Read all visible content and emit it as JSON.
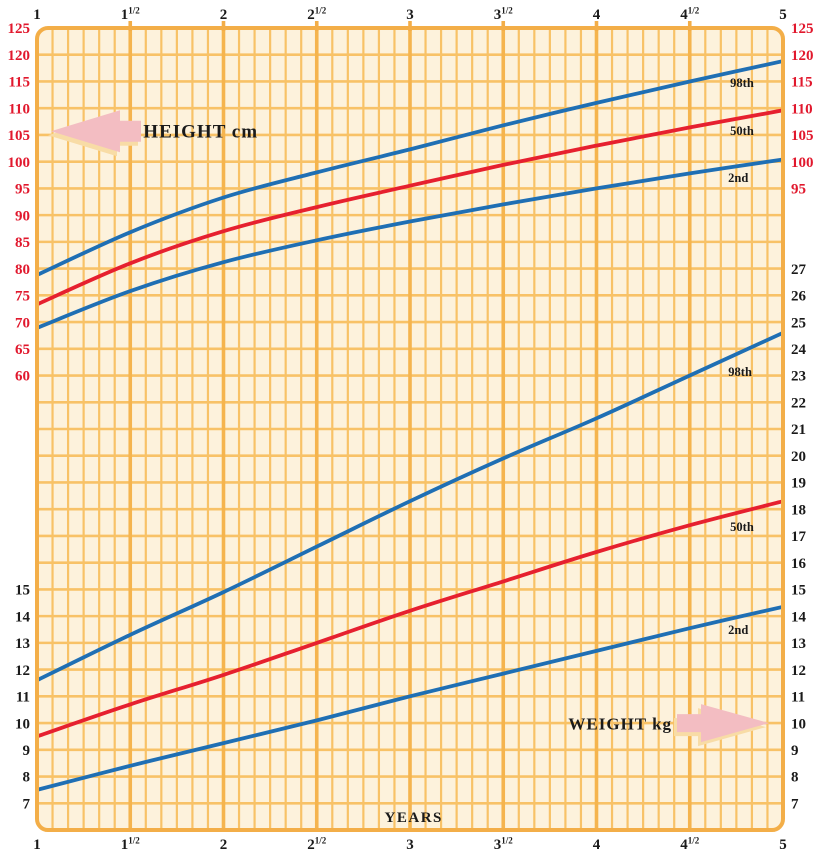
{
  "colors": {
    "page_bg": "#ffffff",
    "plot_bg": "#fdf2dc",
    "grid_minor": "#f8c267",
    "grid_major": "#f5b44e",
    "border": "#f3ae48",
    "curve_blue": "#1f6fb4",
    "curve_red": "#e6202f",
    "height_label_red": "#e1182d",
    "text_black": "#1a1a1a",
    "arrow_pink": "#f3bdc2",
    "arrow_shadow": "#f8dca6"
  },
  "chart_data": {
    "type": "line",
    "x_axis": {
      "label": "YEARS",
      "label_age_position": 3.02,
      "min": 1,
      "max": 5,
      "tick_labels": [
        {
          "t": "1"
        },
        {
          "t": "1",
          "sup": "1/2"
        },
        {
          "t": "2"
        },
        {
          "t": "2",
          "sup": "1/2"
        },
        {
          "t": "3"
        },
        {
          "t": "3",
          "sup": "1/2"
        },
        {
          "t": "4"
        },
        {
          "t": "4",
          "sup": "1/2"
        },
        {
          "t": "5"
        }
      ],
      "shown_top": true,
      "shown_bottom": true,
      "minor_divisions_per_half_year": 6
    },
    "height_axis": {
      "title": "HEIGHT cm",
      "unit": "cm",
      "min": 60,
      "max": 125,
      "step": 5,
      "left_tick_labels": [
        125,
        120,
        115,
        110,
        105,
        100,
        95,
        90,
        85,
        80,
        75,
        70,
        65,
        60
      ],
      "right_tick_labels": [
        125,
        120,
        115,
        110,
        105,
        100,
        95
      ]
    },
    "weight_axis": {
      "title": "WEIGHT kg",
      "unit": "kg",
      "min": 7,
      "max": 27,
      "step": 1,
      "left_tick_labels": [
        15,
        14,
        13,
        12,
        11,
        10,
        9,
        8,
        7
      ],
      "right_tick_labels": [
        27,
        26,
        25,
        24,
        23,
        22,
        21,
        20,
        19,
        18,
        17,
        16,
        15,
        14,
        13,
        12,
        11,
        10,
        9,
        8,
        7
      ]
    },
    "ages": [
      1,
      1.5,
      2,
      2.5,
      3,
      3.5,
      4,
      4.5,
      5
    ],
    "series": [
      {
        "id": "height-98th",
        "group": "height",
        "name": "98th",
        "color_key": "curve_blue",
        "values": [
          78.8,
          86.8,
          93.3,
          98.0,
          102.3,
          106.8,
          111.0,
          115.0,
          118.8
        ],
        "label": {
          "text": "98th",
          "age": 4.78,
          "value": 114.8
        }
      },
      {
        "id": "height-50th",
        "group": "height",
        "name": "50th",
        "color_key": "curve_red",
        "values": [
          73.3,
          81.0,
          87.0,
          91.5,
          95.5,
          99.4,
          103.0,
          106.4,
          109.6
        ],
        "label": {
          "text": "50th",
          "age": 4.78,
          "value": 105.8
        }
      },
      {
        "id": "height-2nd",
        "group": "height",
        "name": "2nd",
        "color_key": "curve_blue",
        "values": [
          68.9,
          75.8,
          81.2,
          85.3,
          88.8,
          92.0,
          95.0,
          97.8,
          100.4
        ],
        "label": {
          "text": "2nd",
          "age": 4.76,
          "value": 97.0
        }
      },
      {
        "id": "weight-98th",
        "group": "weight",
        "name": "98th",
        "color_key": "curve_blue",
        "values": [
          11.6,
          13.3,
          14.9,
          16.6,
          18.3,
          19.9,
          21.4,
          23.0,
          24.6
        ],
        "label": {
          "text": "98th",
          "age": 4.77,
          "value": 23.15
        }
      },
      {
        "id": "weight-50th",
        "group": "weight",
        "name": "50th",
        "color_key": "curve_red",
        "values": [
          9.5,
          10.7,
          11.8,
          13.0,
          14.2,
          15.3,
          16.4,
          17.4,
          18.3
        ],
        "label": {
          "text": "50th",
          "age": 4.78,
          "value": 17.35
        }
      },
      {
        "id": "weight-2nd",
        "group": "weight",
        "name": "2nd",
        "color_key": "curve_blue",
        "values": [
          7.5,
          8.4,
          9.25,
          10.1,
          11.0,
          11.85,
          12.7,
          13.55,
          14.35
        ],
        "label": {
          "text": "2nd",
          "age": 4.76,
          "value": 13.5
        }
      }
    ],
    "annotations": [
      {
        "id": "height-arrow",
        "text": "HEIGHT cm",
        "direction": "left",
        "axis": "height",
        "points_at_value": 105.7,
        "tip_age": 1.075,
        "text_age": 1.57
      },
      {
        "id": "weight-arrow",
        "text": "WEIGHT kg",
        "direction": "right",
        "axis": "weight",
        "points_at_value": 10,
        "tip_age": 4.925,
        "text_age": 4.405
      }
    ]
  }
}
